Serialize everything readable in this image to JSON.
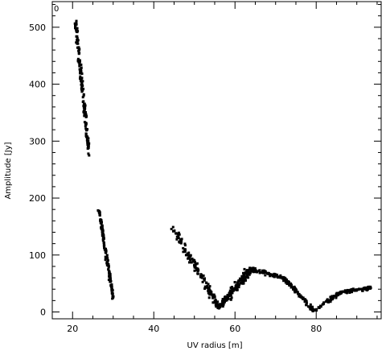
{
  "chart_data": {
    "type": "scatter",
    "title": "",
    "corner_label": "0",
    "xlabel": "UV radius [m]",
    "ylabel": "Amplitude [Jy]",
    "xlim": [
      15,
      96
    ],
    "ylim": [
      -12,
      545
    ],
    "xticks": [
      20,
      40,
      60,
      80,
      100
    ],
    "yticks": [
      0,
      100,
      200,
      300,
      400,
      500
    ],
    "grid": false,
    "marker_color": "#000000",
    "clusters": [
      {
        "from": [
          20.8,
          505
        ],
        "to": [
          24.0,
          280
        ],
        "n": 160,
        "spread": [
          0.5,
          12
        ]
      },
      {
        "from": [
          26.5,
          180
        ],
        "to": [
          30.0,
          25
        ],
        "n": 140,
        "spread": [
          0.35,
          8
        ]
      },
      {
        "from": [
          44.5,
          150
        ],
        "to": [
          56.0,
          8
        ],
        "n": 150,
        "spread": [
          1.0,
          9
        ]
      },
      {
        "from": [
          56.0,
          8
        ],
        "to": [
          64.0,
          75
        ],
        "n": 180,
        "spread": [
          1.2,
          10
        ]
      },
      {
        "from": [
          64.0,
          75
        ],
        "to": [
          72.0,
          60
        ],
        "n": 70,
        "spread": [
          0.8,
          5
        ]
      },
      {
        "from": [
          72.0,
          60
        ],
        "to": [
          79.5,
          2
        ],
        "n": 90,
        "spread": [
          0.7,
          5
        ]
      },
      {
        "from": [
          79.5,
          2
        ],
        "to": [
          86.0,
          35
        ],
        "n": 60,
        "spread": [
          0.8,
          4
        ]
      },
      {
        "from": [
          86.0,
          35
        ],
        "to": [
          93.5,
          42
        ],
        "n": 80,
        "spread": [
          0.9,
          4
        ]
      }
    ]
  }
}
